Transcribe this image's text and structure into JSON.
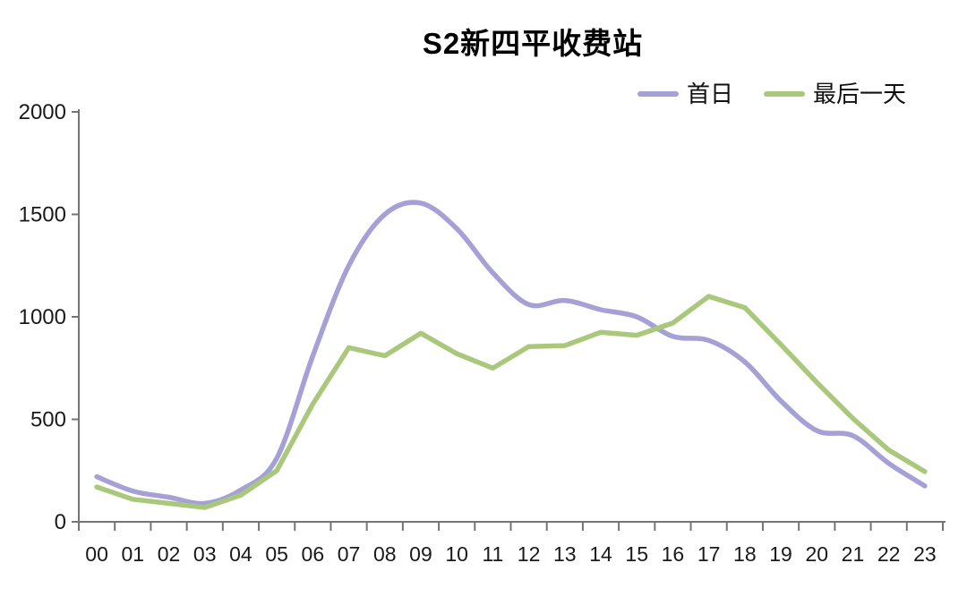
{
  "title": "S2新四平收费站",
  "chart_data": {
    "type": "line",
    "title": "S2新四平收费站",
    "categories": [
      "00",
      "01",
      "02",
      "03",
      "04",
      "05",
      "06",
      "07",
      "08",
      "09",
      "10",
      "11",
      "12",
      "13",
      "14",
      "15",
      "16",
      "17",
      "18",
      "19",
      "20",
      "21",
      "22",
      "23"
    ],
    "series": [
      {
        "name": "首日",
        "color": "#a5a0d5",
        "smooth": true,
        "values": [
          220,
          150,
          120,
          90,
          155,
          310,
          810,
          1250,
          1500,
          1555,
          1430,
          1215,
          1060,
          1080,
          1035,
          1000,
          905,
          885,
          780,
          590,
          445,
          420,
          285,
          175
        ]
      },
      {
        "name": "最后一天",
        "color": "#a9c87b",
        "smooth": false,
        "values": [
          170,
          110,
          90,
          70,
          130,
          250,
          575,
          850,
          810,
          920,
          820,
          750,
          855,
          860,
          925,
          910,
          970,
          1100,
          1045,
          865,
          680,
          505,
          350,
          245
        ]
      }
    ],
    "xlabel": "",
    "ylabel": "",
    "ylim": [
      0,
      2000
    ],
    "yticks": [
      0,
      500,
      1000,
      1500,
      2000
    ],
    "grid": false,
    "legend_position": "top-right",
    "axis_color": "#757575",
    "text_color": "#1a1a1a"
  }
}
